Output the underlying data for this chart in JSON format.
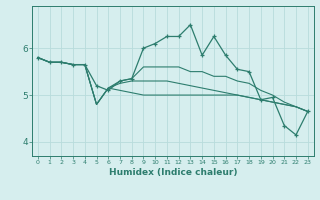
{
  "xlabel": "Humidex (Indice chaleur)",
  "ylabel": "",
  "background_color": "#d6eeee",
  "grid_color": "#b8dcdc",
  "line_color": "#2d7d6e",
  "xlim": [
    -0.5,
    23.5
  ],
  "ylim": [
    3.7,
    6.9
  ],
  "yticks": [
    4,
    5,
    6
  ],
  "xticks": [
    0,
    1,
    2,
    3,
    4,
    5,
    6,
    7,
    8,
    9,
    10,
    11,
    12,
    13,
    14,
    15,
    16,
    17,
    18,
    19,
    20,
    21,
    22,
    23
  ],
  "series": [
    [
      5.8,
      5.7,
      5.7,
      5.65,
      5.65,
      5.2,
      5.1,
      5.3,
      5.35,
      6.0,
      6.1,
      6.25,
      6.25,
      6.5,
      5.85,
      6.25,
      5.85,
      5.55,
      5.5,
      4.9,
      4.95,
      4.35,
      4.15,
      4.65
    ],
    [
      5.8,
      5.7,
      5.7,
      5.65,
      5.65,
      4.8,
      5.15,
      5.1,
      5.05,
      5.0,
      5.0,
      5.0,
      5.0,
      5.0,
      5.0,
      5.0,
      5.0,
      5.0,
      4.95,
      4.9,
      4.85,
      4.8,
      4.75,
      4.65
    ],
    [
      5.8,
      5.7,
      5.7,
      5.65,
      5.65,
      4.8,
      5.15,
      5.3,
      5.35,
      5.6,
      5.6,
      5.6,
      5.6,
      5.5,
      5.5,
      5.4,
      5.4,
      5.3,
      5.25,
      5.1,
      5.0,
      4.85,
      4.75,
      4.65
    ],
    [
      5.8,
      5.7,
      5.7,
      5.65,
      5.65,
      4.8,
      5.15,
      5.25,
      5.3,
      5.3,
      5.3,
      5.3,
      5.25,
      5.2,
      5.15,
      5.1,
      5.05,
      5.0,
      4.95,
      4.9,
      4.85,
      4.8,
      4.75,
      4.65
    ]
  ]
}
